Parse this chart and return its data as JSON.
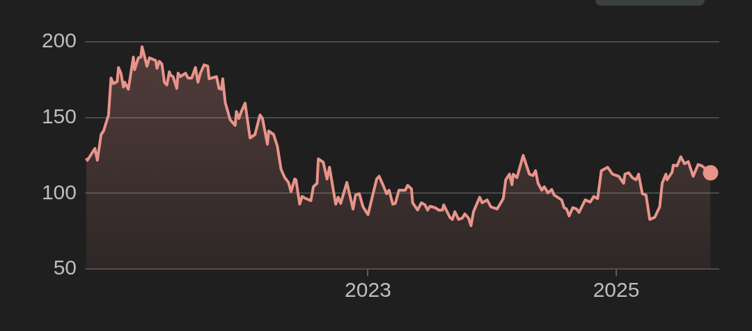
{
  "chart_data": {
    "type": "area",
    "x": [
      2020.73,
      2020.74,
      2020.8,
      2020.82,
      2020.85,
      2020.87,
      2020.91,
      2020.93,
      2020.95,
      2020.98,
      2020.99,
      2021.01,
      2021.03,
      2021.04,
      2021.07,
      2021.11,
      2021.12,
      2021.15,
      2021.17,
      2021.18,
      2021.22,
      2021.24,
      2021.29,
      2021.3,
      2021.32,
      2021.34,
      2021.36,
      2021.38,
      2021.4,
      2021.41,
      2021.43,
      2021.46,
      2021.47,
      2021.49,
      2021.53,
      2021.55,
      2021.58,
      2021.61,
      2021.63,
      2021.65,
      2021.68,
      2021.71,
      2021.72,
      2021.78,
      2021.8,
      2021.82,
      2021.83,
      2021.85,
      2021.89,
      2021.93,
      2021.94,
      2021.96,
      2021.98,
      2022.01,
      2022.05,
      2022.09,
      2022.13,
      2022.15,
      2022.19,
      2022.2,
      2022.24,
      2022.27,
      2022.3,
      2022.33,
      2022.36,
      2022.38,
      2022.41,
      2022.42,
      2022.45,
      2022.47,
      2022.5,
      2022.54,
      2022.56,
      2022.59,
      2022.6,
      2022.64,
      2022.67,
      2022.69,
      2022.74,
      2022.76,
      2022.78,
      2022.83,
      2022.88,
      2022.9,
      2022.93,
      2022.96,
      2023.0,
      2023.07,
      2023.09,
      2023.12,
      2023.15,
      2023.17,
      2023.2,
      2023.22,
      2023.25,
      2023.3,
      2023.32,
      2023.35,
      2023.36,
      2023.4,
      2023.43,
      2023.46,
      2023.48,
      2023.5,
      2023.54,
      2023.57,
      2023.6,
      2023.61,
      2023.66,
      2023.68,
      2023.7,
      2023.73,
      2023.76,
      2023.78,
      2023.81,
      2023.83,
      2023.85,
      2023.9,
      2023.92,
      2023.96,
      2023.99,
      2024.04,
      2024.09,
      2024.11,
      2024.14,
      2024.16,
      2024.17,
      2024.2,
      2024.25,
      2024.3,
      2024.33,
      2024.35,
      2024.37,
      2024.4,
      2024.42,
      2024.45,
      2024.48,
      2024.5,
      2024.56,
      2024.58,
      2024.6,
      2024.62,
      2024.65,
      2024.68,
      2024.7,
      2024.75,
      2024.79,
      2024.82,
      2024.85,
      2024.88,
      2024.93,
      2024.97,
      2025.02,
      2025.06,
      2025.07,
      2025.1,
      2025.13,
      2025.16,
      2025.18,
      2025.21,
      2025.24,
      2025.27,
      2025.31,
      2025.35,
      2025.37,
      2025.4,
      2025.41,
      2025.45,
      2025.46,
      2025.49,
      2025.52,
      2025.55,
      2025.58,
      2025.62,
      2025.66,
      2025.69,
      2025.76
    ],
    "series": [
      {
        "color": "#e8948a",
        "values": [
          123.2,
          121.8,
          129.6,
          121.8,
          138.8,
          141.1,
          151.7,
          176.1,
          172.4,
          173.8,
          183.0,
          179.3,
          170.1,
          173.3,
          168.7,
          189.9,
          181.6,
          189.4,
          189.9,
          196.8,
          183.9,
          189.4,
          187.6,
          182.5,
          187.1,
          185.3,
          173.3,
          171.5,
          180.2,
          177.9,
          177.0,
          169.2,
          179.3,
          177.0,
          179.3,
          176.1,
          176.1,
          183.0,
          173.3,
          179.3,
          184.8,
          183.9,
          175.6,
          177.0,
          169.2,
          168.7,
          175.6,
          160.0,
          148.5,
          144.8,
          154.0,
          149.4,
          154.0,
          159.5,
          136.5,
          138.8,
          151.7,
          149.4,
          132.4,
          141.1,
          138.8,
          131.0,
          115.8,
          110.3,
          107.1,
          101.1,
          109.4,
          108.9,
          92.8,
          97.9,
          96.5,
          95.1,
          104.3,
          106.6,
          122.7,
          120.4,
          109.4,
          117.2,
          92.8,
          97.4,
          93.3,
          107.1,
          89.6,
          98.8,
          99.7,
          91.0,
          85.9,
          109.4,
          111.2,
          105.7,
          99.7,
          102.0,
          92.8,
          93.3,
          102.0,
          102.0,
          105.2,
          102.9,
          93.7,
          88.9,
          93.7,
          92.3,
          88.9,
          91.4,
          90.5,
          88.9,
          88.9,
          92.3,
          84.1,
          82.7,
          87.8,
          82.7,
          83.6,
          86.4,
          83.6,
          78.6,
          87.8,
          97.4,
          93.7,
          95.6,
          91.0,
          89.6,
          96.5,
          108.9,
          112.6,
          105.7,
          112.6,
          110.3,
          125.0,
          112.6,
          111.7,
          114.9,
          106.6,
          102.0,
          104.3,
          100.2,
          102.5,
          98.8,
          95.6,
          90.5,
          89.6,
          85.0,
          90.5,
          89.6,
          87.3,
          95.6,
          94.2,
          97.9,
          96.5,
          114.9,
          117.2,
          112.6,
          111.2,
          106.6,
          112.6,
          113.5,
          110.3,
          108.9,
          112.6,
          99.7,
          98.8,
          82.7,
          84.1,
          91.0,
          106.6,
          112.6,
          108.9,
          113.9,
          118.6,
          118.1,
          124.1,
          119.5,
          120.9,
          111.2,
          119.0,
          118.1,
          113.5
        ]
      }
    ],
    "xlim": [
      2020.72,
      2025.83
    ],
    "xticks": [
      2023,
      2025
    ],
    "ylim": [
      50,
      200
    ],
    "yticks": [
      50,
      100,
      150,
      200
    ],
    "grid": "y",
    "legend": false,
    "line_style": "solid"
  }
}
